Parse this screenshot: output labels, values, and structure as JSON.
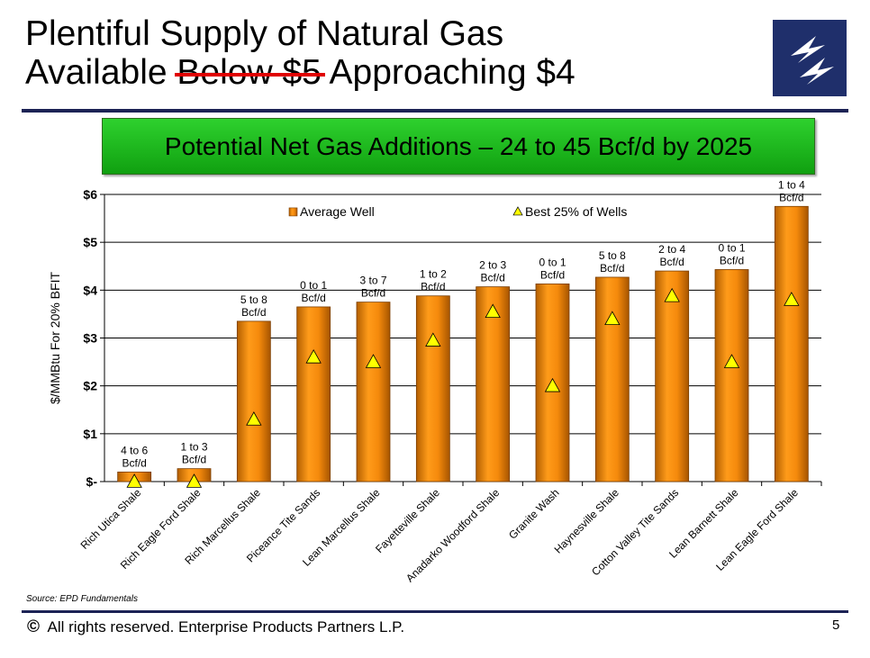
{
  "title": {
    "line1": "Plentiful Supply of Natural Gas",
    "line2_start": "Available ",
    "line2_struck": "Below $5",
    "line2_end": " Approaching $4"
  },
  "colors": {
    "navy": "#1c2355",
    "bar": "#f08c10",
    "marker": "#ffff00"
  },
  "banner": {
    "text": "Potential Net Gas Additions – 24 to 45 Bcf/d by 2025"
  },
  "logo": {
    "icon": "lightning-bolt-icon"
  },
  "chart_data": {
    "type": "bar",
    "ylabel": "$/MMBtu For 20% BFIT",
    "ylim": [
      0,
      6
    ],
    "yticks": [
      {
        "value": 0,
        "label": "$-"
      },
      {
        "value": 1,
        "label": "$1"
      },
      {
        "value": 2,
        "label": "$2"
      },
      {
        "value": 3,
        "label": "$3"
      },
      {
        "value": 4,
        "label": "$4"
      },
      {
        "value": 5,
        "label": "$5"
      },
      {
        "value": 6,
        "label": "$6"
      }
    ],
    "grid": true,
    "legend_position": "top",
    "categories": [
      "Rich Utica Shale",
      "Rich Eagle Ford Shale",
      "Rich Marcellus Shale",
      "Piceance Tite Sands",
      "Lean Marcellus Shale",
      "Fayetteville Shale",
      "Anadarko Woodford Shale",
      "Granite Wash",
      "Haynesville Shale",
      "Cotton Valley Tite Sands",
      "Lean Barnett Shale",
      "Lean Eagle Ford Shale"
    ],
    "series": [
      {
        "name": "Average Well",
        "type": "bar",
        "values": [
          0.2,
          0.27,
          3.35,
          3.65,
          3.75,
          3.88,
          4.07,
          4.13,
          4.27,
          4.4,
          4.43,
          5.75
        ]
      },
      {
        "name": "Best 25% of Wells",
        "type": "marker",
        "values": [
          0.0,
          0.0,
          1.3,
          2.6,
          2.5,
          2.95,
          3.55,
          2.0,
          3.4,
          3.88,
          2.5,
          3.8
        ]
      }
    ],
    "bar_labels": [
      [
        "4 to 6",
        "Bcf/d"
      ],
      [
        "1 to 3",
        "Bcf/d"
      ],
      [
        "5 to 8",
        "Bcf/d"
      ],
      [
        "0 to 1",
        "Bcf/d"
      ],
      [
        "3 to 7",
        "Bcf/d"
      ],
      [
        "1 to 2",
        "Bcf/d"
      ],
      [
        "2 to 3",
        "Bcf/d"
      ],
      [
        "0 to 1",
        "Bcf/d"
      ],
      [
        "5 to 8",
        "Bcf/d"
      ],
      [
        "2 to 4",
        "Bcf/d"
      ],
      [
        "0 to 1",
        "Bcf/d"
      ],
      [
        "1 to 4",
        "Bcf/d"
      ]
    ]
  },
  "source": "Source:  EPD Fundamentals",
  "footer": {
    "copyright_symbol": "©",
    "text": "All rights reserved. Enterprise Products Partners L.P.",
    "page": "5"
  }
}
